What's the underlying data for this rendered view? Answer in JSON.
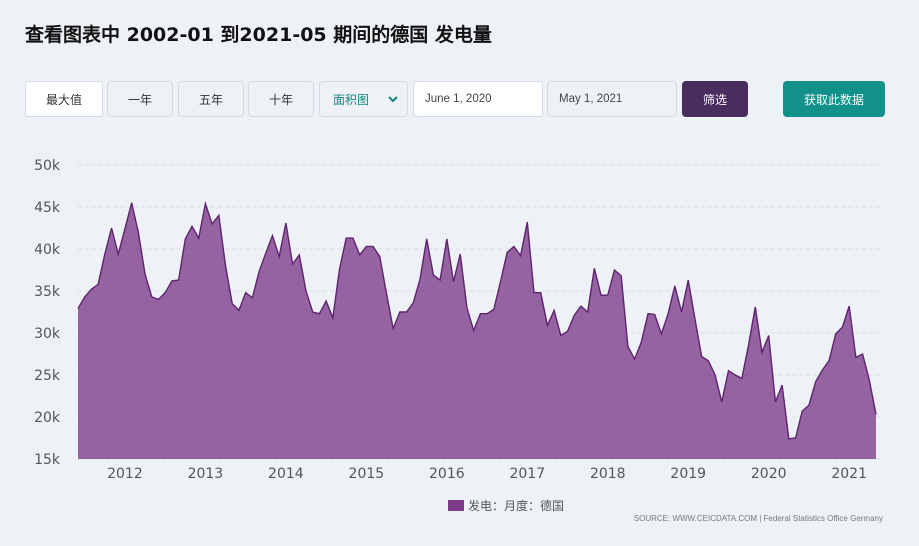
{
  "header": {
    "title": "查看图表中 2002-01 到2021-05 期间的德国 发电量"
  },
  "toolbar": {
    "range_buttons": [
      "最大值",
      "一年",
      "五年",
      "十年"
    ],
    "chart_type_selected": "面积图",
    "start_date": "June 1, 2020",
    "end_date": "May 1, 2021",
    "filter_label": "筛选",
    "get_data_label": "获取此数据",
    "filter_color": "#4a2d5f",
    "get_data_color": "#12908a"
  },
  "legend": {
    "label": "发电：月度：德国",
    "color": "#7c3a8b"
  },
  "source": "SOURCE: WWW.CEICDATA.COM | Federal Statistics Office Germany",
  "chart_data": {
    "type": "area",
    "title": "",
    "xlabel": "",
    "ylabel": "",
    "ylim": [
      15000,
      50000
    ],
    "y_ticks": [
      15000,
      20000,
      25000,
      30000,
      35000,
      40000,
      45000,
      50000
    ],
    "y_tick_labels": [
      "15k",
      "20k",
      "25k",
      "30k",
      "35k",
      "40k",
      "45k",
      "50k"
    ],
    "x_tick_labels": [
      "2012",
      "2013",
      "2014",
      "2015",
      "2016",
      "2017",
      "2018",
      "2019",
      "2020",
      "2021"
    ],
    "x_start": "2011-06",
    "x_end": "2021-05",
    "grid": true,
    "legend_position": "bottom",
    "series": [
      {
        "name": "发电：月度：德国",
        "color": "#7c3a8b",
        "values": [
          32900,
          34300,
          35200,
          35800,
          39400,
          42500,
          39400,
          42400,
          45500,
          42000,
          37000,
          34300,
          34000,
          34800,
          36200,
          36300,
          41200,
          42700,
          41300,
          45400,
          43000,
          44000,
          38000,
          33500,
          32700,
          34800,
          34200,
          37300,
          39500,
          41600,
          39100,
          43100,
          38200,
          39300,
          35000,
          32500,
          32300,
          33800,
          31800,
          37600,
          41300,
          41300,
          39300,
          40300,
          40300,
          39100,
          34700,
          30500,
          32500,
          32500,
          33600,
          36400,
          41200,
          36900,
          36300,
          41200,
          36100,
          39400,
          33000,
          30300,
          32300,
          32300,
          32800,
          36100,
          39600,
          40300,
          39200,
          43200,
          34800,
          34800,
          30900,
          32700,
          29700,
          30200,
          32100,
          33200,
          32500,
          37700,
          34500,
          34500,
          37500,
          36800,
          28400,
          26900,
          28900,
          32300,
          32200,
          29900,
          32300,
          35600,
          32500,
          36300,
          31700,
          27200,
          26700,
          25000,
          21800,
          25500,
          25000,
          24600,
          28600,
          33100,
          27700,
          29700,
          21800,
          23800,
          17400,
          17500,
          20700,
          21400,
          24200,
          25600,
          26700,
          29900,
          30700,
          33200,
          27100,
          27500,
          24400,
          20300
        ]
      }
    ]
  }
}
